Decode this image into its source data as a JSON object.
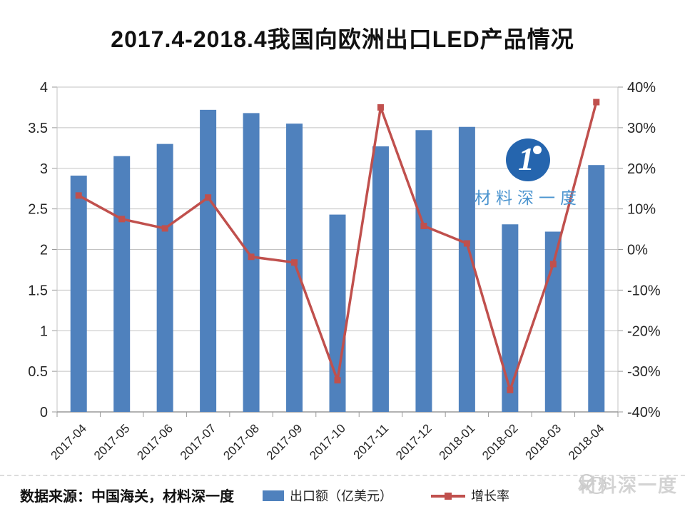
{
  "title": "2017.4-2018.4我国向欧洲出口LED产品情况",
  "chart_data": {
    "type": "bar",
    "subtype": "bar+line combo",
    "categories": [
      "2017-04",
      "2017-05",
      "2017-06",
      "2017-07",
      "2017-08",
      "2017-09",
      "2017-10",
      "2017-11",
      "2017-12",
      "2018-01",
      "2018-02",
      "2018-03",
      "2018-04"
    ],
    "series": [
      {
        "name": "出口额（亿美元）",
        "type": "bar",
        "axis": "left",
        "color": "#4f81bd",
        "values": [
          2.91,
          3.15,
          3.3,
          3.72,
          3.68,
          3.55,
          2.43,
          3.27,
          3.47,
          3.51,
          2.31,
          2.22,
          3.04
        ]
      },
      {
        "name": "增长率",
        "type": "line",
        "axis": "right",
        "color": "#c0504d",
        "values": [
          13.3,
          7.5,
          5.2,
          12.8,
          -1.8,
          -3.2,
          -32.2,
          35.0,
          5.8,
          1.5,
          -34.6,
          -3.6,
          36.3
        ]
      }
    ],
    "left_axis": {
      "min": 0,
      "max": 4,
      "tick_values": [
        0,
        0.5,
        1,
        1.5,
        2,
        2.5,
        3,
        3.5,
        4
      ],
      "tick_labels": [
        "0",
        "0.5",
        "1",
        "1.5",
        "2",
        "2.5",
        "3",
        "3.5",
        "4"
      ]
    },
    "right_axis": {
      "min": -40,
      "max": 40,
      "tick_values": [
        -40,
        -30,
        -20,
        -10,
        0,
        10,
        20,
        30,
        40
      ],
      "tick_labels": [
        "-40%",
        "-30%",
        "-20%",
        "-10%",
        "0%",
        "10%",
        "20%",
        "30%",
        "40%"
      ]
    },
    "grid": true,
    "legend_position": "bottom",
    "colors": {
      "grid": "#c3c3c3",
      "axis": "#999999",
      "tick_text": "#262626"
    }
  },
  "watermark_center": {
    "numeral": "1",
    "brand": "材料深一度",
    "circle_color": "#2565ae",
    "text_color": "#4b94cf"
  },
  "footer": {
    "source": "数据来源：中国海关，材料深一度",
    "corner_watermark": "材料深一度"
  }
}
